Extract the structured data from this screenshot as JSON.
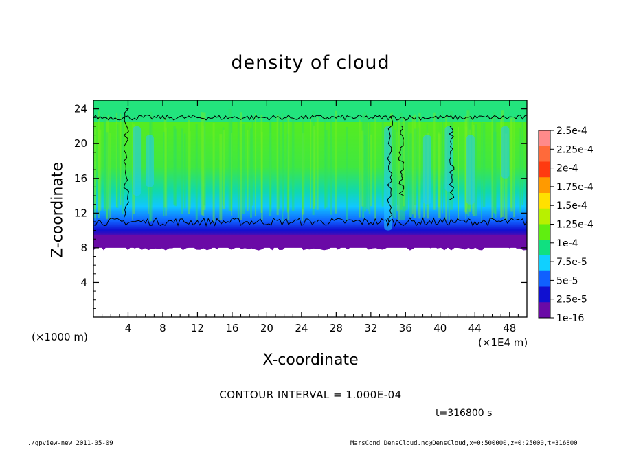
{
  "chart_data": {
    "type": "heatmap",
    "title": "density of cloud",
    "xlabel": "X-coordinate",
    "ylabel": "Z-coordinate",
    "x_unit_left": "(×1000 m)",
    "x_unit_right": "(×1E4 m)",
    "xlim": [
      0,
      50
    ],
    "ylim": [
      0,
      25
    ],
    "x_ticks": [
      4,
      8,
      12,
      16,
      20,
      24,
      28,
      32,
      36,
      40,
      44,
      48
    ],
    "y_ticks": [
      4,
      8,
      12,
      16,
      20,
      24
    ],
    "cloud_layer": {
      "base_z": 8,
      "top_z": 24.5,
      "contour_z_approx": [
        11,
        23
      ]
    },
    "colorbar": {
      "labels": [
        "2.5e-4",
        "2.25e-4",
        "2e-4",
        "1.75e-4",
        "1.5e-4",
        "1.25e-4",
        "1e-4",
        "7.5e-5",
        "5e-5",
        "2.5e-5",
        "1e-16"
      ],
      "colors": [
        "#ff8a8a",
        "#ff6a3a",
        "#ff3a10",
        "#ff9a00",
        "#ffe000",
        "#b8f000",
        "#60ee10",
        "#10e080",
        "#10d0ff",
        "#1060ff",
        "#1010d0",
        "#6a0aa6"
      ]
    },
    "contour_interval": "CONTOUR INTERVAL = 1.000E-04",
    "time": "t=316800 s"
  },
  "footer": {
    "left": "./gpview-new  2011-05-09",
    "right": "MarsCond_DensCloud.nc@DensCloud,x=0:500000,z=0:25000,t=316800"
  }
}
